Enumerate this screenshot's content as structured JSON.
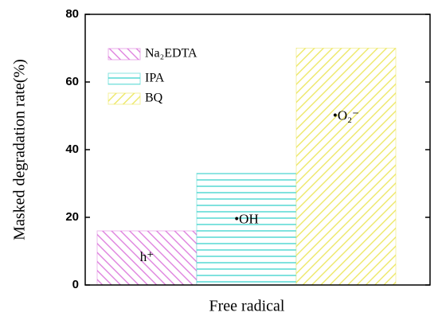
{
  "chart_data": {
    "type": "bar",
    "categories": [
      null
    ],
    "series": [
      {
        "name": "Na₂EDTA",
        "color": "#dc78dc",
        "hatch": "diagonal-up",
        "values": [
          16
        ]
      },
      {
        "name": "IPA",
        "color": "#3cd2cc",
        "hatch": "horizontal",
        "values": [
          33
        ]
      },
      {
        "name": "BQ",
        "color": "#ece65a",
        "hatch": "diagonal-down",
        "values": [
          70
        ]
      }
    ],
    "annotations": [
      "h⁺",
      "•OH",
      "•O₂⁻"
    ],
    "xlabel": "Free radical",
    "ylabel": "Masked degradation rate(%)",
    "ylim": [
      0,
      80
    ],
    "yticks": [
      0,
      20,
      40,
      60,
      80
    ],
    "grid": false,
    "legend": "upper left"
  }
}
